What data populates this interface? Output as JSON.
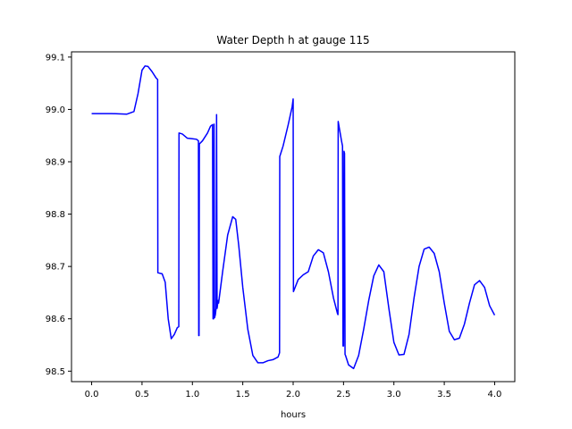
{
  "chart_data": {
    "type": "line",
    "title": "Water Depth h at gauge 115",
    "xlabel": "hours",
    "ylabel": "",
    "xlim": [
      -0.2,
      4.2
    ],
    "ylim": [
      98.48,
      99.11
    ],
    "xticks": [
      0.0,
      0.5,
      1.0,
      1.5,
      2.0,
      2.5,
      3.0,
      3.5,
      4.0
    ],
    "xtick_labels": [
      "0.0",
      "0.5",
      "1.0",
      "1.5",
      "2.0",
      "2.5",
      "3.0",
      "3.5",
      "4.0"
    ],
    "yticks": [
      98.5,
      98.6,
      98.7,
      98.8,
      98.9,
      99.0,
      99.1
    ],
    "ytick_labels": [
      "98.5",
      "98.6",
      "98.7",
      "98.8",
      "98.9",
      "99.0",
      "99.1"
    ],
    "grid": false,
    "legend": "none",
    "series": [
      {
        "color": "#0000ff",
        "x": [
          0.0,
          0.2,
          0.35,
          0.42,
          0.46,
          0.5,
          0.53,
          0.56,
          0.6,
          0.64,
          0.655,
          0.657,
          0.7,
          0.73,
          0.76,
          0.79,
          0.82,
          0.85,
          0.865,
          0.867,
          0.9,
          0.95,
          1.0,
          1.04,
          1.06,
          1.063,
          1.066,
          1.069,
          1.1,
          1.15,
          1.18,
          1.2,
          1.205,
          1.21,
          1.215,
          1.22,
          1.228,
          1.235,
          1.24,
          1.245,
          1.255,
          1.26,
          1.3,
          1.35,
          1.4,
          1.43,
          1.46,
          1.5,
          1.55,
          1.6,
          1.65,
          1.7,
          1.75,
          1.8,
          1.85,
          1.865,
          1.867,
          1.9,
          1.95,
          1.99,
          2.0,
          2.003,
          2.05,
          2.1,
          2.15,
          2.2,
          2.25,
          2.3,
          2.35,
          2.4,
          2.44,
          2.445,
          2.447,
          2.48,
          2.49,
          2.495,
          2.5,
          2.505,
          2.51,
          2.515,
          2.52,
          2.55,
          2.6,
          2.65,
          2.7,
          2.75,
          2.8,
          2.85,
          2.9,
          2.95,
          3.0,
          3.05,
          3.1,
          3.15,
          3.2,
          3.25,
          3.3,
          3.35,
          3.4,
          3.45,
          3.5,
          3.55,
          3.6,
          3.65,
          3.7,
          3.75,
          3.8,
          3.85,
          3.9,
          3.95,
          4.0
        ],
        "y": [
          98.992,
          98.992,
          98.991,
          98.996,
          99.03,
          99.075,
          99.083,
          99.082,
          99.072,
          99.06,
          99.057,
          98.688,
          98.686,
          98.67,
          98.6,
          98.562,
          98.57,
          98.583,
          98.585,
          98.955,
          98.953,
          98.945,
          98.944,
          98.943,
          98.94,
          98.568,
          98.568,
          98.934,
          98.94,
          98.955,
          98.968,
          98.971,
          98.6,
          98.6,
          98.972,
          98.602,
          98.608,
          98.62,
          98.99,
          98.62,
          98.635,
          98.63,
          98.69,
          98.76,
          98.795,
          98.79,
          98.74,
          98.66,
          98.58,
          98.53,
          98.516,
          98.516,
          98.52,
          98.522,
          98.527,
          98.535,
          98.91,
          98.93,
          98.97,
          99.005,
          99.02,
          98.652,
          98.675,
          98.684,
          98.69,
          98.72,
          98.732,
          98.726,
          98.69,
          98.64,
          98.61,
          98.608,
          98.977,
          98.94,
          98.93,
          98.548,
          98.548,
          98.92,
          98.916,
          98.532,
          98.53,
          98.512,
          98.505,
          98.53,
          98.58,
          98.635,
          98.682,
          98.703,
          98.69,
          98.62,
          98.555,
          98.531,
          98.532,
          98.57,
          98.64,
          98.7,
          98.733,
          98.737,
          98.725,
          98.69,
          98.63,
          98.576,
          98.56,
          98.563,
          98.59,
          98.63,
          98.665,
          98.673,
          98.66,
          98.625,
          98.607
        ]
      }
    ]
  }
}
